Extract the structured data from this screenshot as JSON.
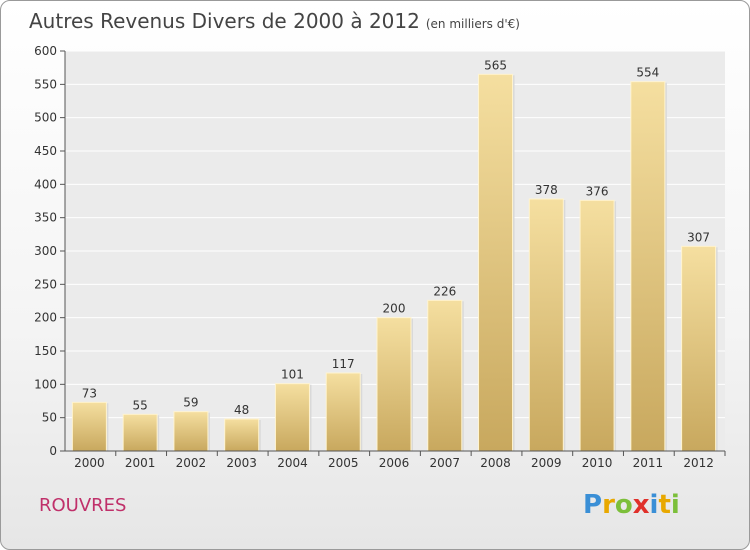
{
  "chart_data": {
    "type": "bar",
    "title": "Autres Revenus Divers de 2000 à 2012",
    "subtitle": "(en milliers d'€)",
    "categories": [
      "2000",
      "2001",
      "2002",
      "2003",
      "2004",
      "2005",
      "2006",
      "2007",
      "2008",
      "2009",
      "2010",
      "2011",
      "2012"
    ],
    "values": [
      73,
      55,
      59,
      48,
      101,
      117,
      200,
      226,
      565,
      378,
      376,
      554,
      307
    ],
    "ylim": [
      0,
      600
    ],
    "yticks": [
      0,
      50,
      100,
      150,
      200,
      250,
      300,
      350,
      400,
      450,
      500,
      550,
      600
    ],
    "grid": true,
    "colors": {
      "bar_light": "#f5dfa0",
      "bar_dark": "#c8a85e",
      "grid": "#ffffff",
      "plot_bg": "#ebebeb"
    }
  },
  "footer": {
    "town": "ROUVRES",
    "logo": [
      "P",
      "r",
      "o",
      "x",
      "i",
      "t",
      "i"
    ],
    "logo_colors": [
      "#3a8fd6",
      "#e8a800",
      "#7cbf3a",
      "#e0302a",
      "#3a8fd6",
      "#e8a800",
      "#7cbf3a"
    ]
  }
}
